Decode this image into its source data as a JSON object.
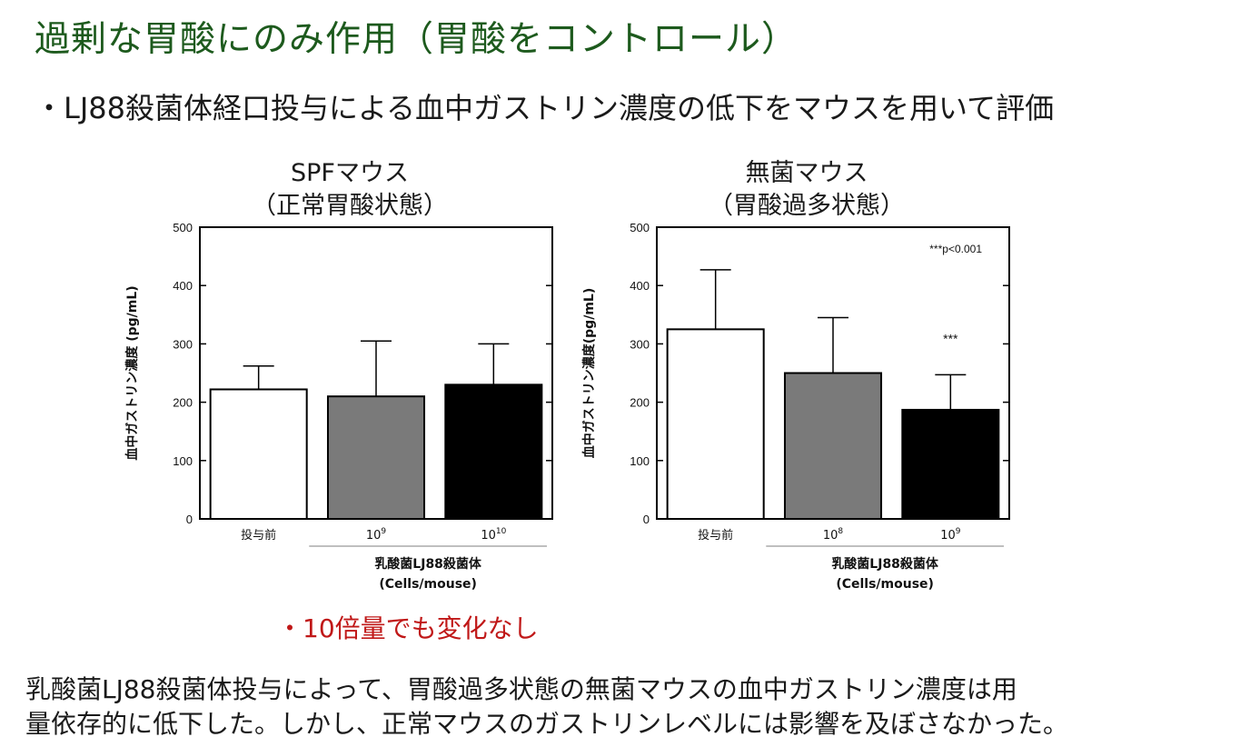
{
  "title": "過剰な胃酸にのみ作用（胃酸をコントロール）",
  "subtitle": "・LJ88殺菌体経口投与による血中ガストリン濃度の低下をマウスを用いて評価",
  "note_red": "・10倍量でも変化なし",
  "conclusion": {
    "line1": "乳酸菌LJ88殺菌体投与によって、胃酸過多状態の無菌マウスの血中ガストリン濃度は用",
    "line2": "量依存的に低下した。しかし、正常マウスのガストリンレベルには影響を及ぼさなかった。"
  },
  "colors": {
    "title": "#1d5a1d",
    "note": "#c01818",
    "bar_white": "#ffffff",
    "bar_gray": "#7a7a7a",
    "bar_black": "#000000"
  },
  "chart_data": [
    {
      "type": "bar",
      "title_line1": "SPFマウス",
      "title_line2": "（正常胃酸状態）",
      "ylabel": "血中ガストリン濃度 (pg/mL)",
      "xlabel_line1": "乳酸菌LJ88殺菌体",
      "xlabel_line2": "(Cells/mouse)",
      "ylim": [
        0,
        500
      ],
      "yticks": [
        "0",
        "100",
        "200",
        "300",
        "400",
        "500"
      ],
      "categories": [
        {
          "base": "投与前",
          "exp": ""
        },
        {
          "base": "10",
          "exp": "9"
        },
        {
          "base": "10",
          "exp": "10"
        }
      ],
      "values": [
        222,
        210,
        230
      ],
      "errors": [
        40,
        95,
        70
      ],
      "bar_colors": [
        "#ffffff",
        "#7a7a7a",
        "#000000"
      ],
      "annotations": [],
      "corner_note": ""
    },
    {
      "type": "bar",
      "title_line1": "無菌マウス",
      "title_line2": "（胃酸過多状態）",
      "ylabel": "血中ガストリン濃度(pg/mL)",
      "xlabel_line1": "乳酸菌LJ88殺菌体",
      "xlabel_line2": "(Cells/mouse)",
      "ylim": [
        0,
        500
      ],
      "yticks": [
        "0",
        "100",
        "200",
        "300",
        "400",
        "500"
      ],
      "categories": [
        {
          "base": "投与前",
          "exp": ""
        },
        {
          "base": "10",
          "exp": "8"
        },
        {
          "base": "10",
          "exp": "9"
        }
      ],
      "values": [
        325,
        250,
        187
      ],
      "errors": [
        102,
        95,
        60
      ],
      "bar_colors": [
        "#ffffff",
        "#7a7a7a",
        "#000000"
      ],
      "annotations": [
        "",
        "",
        "***"
      ],
      "corner_note": "***p<0.001"
    }
  ]
}
